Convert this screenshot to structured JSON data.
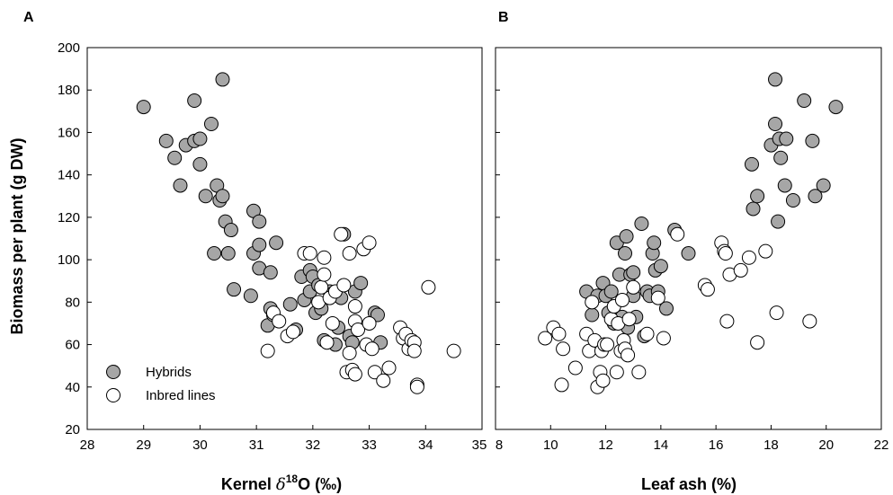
{
  "figure": {
    "ylabel": "Biomass per plant (g DW)"
  },
  "legend": {
    "hybrids_label": "Hybrids",
    "inbred_label": "Inbred lines"
  },
  "colors": {
    "hybrids_fill": "#a6a6a6",
    "inbred_fill": "#ffffff",
    "marker_stroke": "#000000"
  },
  "chart_data": [
    {
      "type": "scatter",
      "panel_label": "A",
      "xlabel_parts": [
        "Kernel ",
        "δ",
        "18",
        "O (‰)"
      ],
      "ylabel": "Biomass per plant (g DW)",
      "xlim": [
        28,
        35
      ],
      "ylim": [
        20,
        200
      ],
      "xticks": [
        "28",
        "29",
        "30",
        "31",
        "32",
        "33",
        "34",
        "35"
      ],
      "yticks": [
        "20",
        "40",
        "60",
        "80",
        "100",
        "120",
        "140",
        "160",
        "180",
        "200"
      ],
      "legend_position": "bottom-left",
      "series": [
        {
          "name": "Hybrids",
          "points": [
            [
              29.0,
              172
            ],
            [
              29.4,
              156
            ],
            [
              29.55,
              148
            ],
            [
              29.65,
              135
            ],
            [
              29.75,
              154
            ],
            [
              29.9,
              175
            ],
            [
              29.9,
              156
            ],
            [
              30.0,
              157
            ],
            [
              30.0,
              145
            ],
            [
              30.1,
              130
            ],
            [
              30.2,
              164
            ],
            [
              30.25,
              103
            ],
            [
              30.3,
              135
            ],
            [
              30.35,
              128
            ],
            [
              30.4,
              130
            ],
            [
              30.4,
              185
            ],
            [
              30.45,
              118
            ],
            [
              30.5,
              103
            ],
            [
              30.55,
              114
            ],
            [
              30.6,
              86
            ],
            [
              30.9,
              83
            ],
            [
              30.95,
              123
            ],
            [
              30.95,
              103
            ],
            [
              31.05,
              118
            ],
            [
              31.05,
              96
            ],
            [
              31.05,
              107
            ],
            [
              31.2,
              69
            ],
            [
              31.25,
              77
            ],
            [
              31.25,
              94
            ],
            [
              31.3,
              74
            ],
            [
              31.35,
              108
            ],
            [
              31.6,
              79
            ],
            [
              31.7,
              67
            ],
            [
              31.8,
              92
            ],
            [
              31.85,
              81
            ],
            [
              31.95,
              95
            ],
            [
              31.95,
              85
            ],
            [
              32.0,
              92
            ],
            [
              32.05,
              75
            ],
            [
              32.1,
              88
            ],
            [
              32.15,
              77
            ],
            [
              32.2,
              62
            ],
            [
              32.3,
              85
            ],
            [
              32.35,
              84
            ],
            [
              32.4,
              60
            ],
            [
              32.45,
              68
            ],
            [
              32.5,
              82
            ],
            [
              32.55,
              112
            ],
            [
              32.65,
              64
            ],
            [
              32.7,
              61
            ],
            [
              32.75,
              85
            ],
            [
              32.85,
              89
            ],
            [
              33.1,
              75
            ],
            [
              33.15,
              74
            ],
            [
              33.2,
              61
            ]
          ]
        },
        {
          "name": "Inbred lines",
          "points": [
            [
              31.2,
              57
            ],
            [
              31.3,
              75
            ],
            [
              31.4,
              71
            ],
            [
              31.55,
              64
            ],
            [
              31.65,
              66
            ],
            [
              31.85,
              103
            ],
            [
              31.95,
              103
            ],
            [
              32.1,
              80
            ],
            [
              32.15,
              87
            ],
            [
              32.2,
              101
            ],
            [
              32.2,
              93
            ],
            [
              32.25,
              61
            ],
            [
              32.3,
              82
            ],
            [
              32.35,
              70
            ],
            [
              32.4,
              85
            ],
            [
              32.5,
              112
            ],
            [
              32.55,
              88
            ],
            [
              32.6,
              47
            ],
            [
              32.65,
              103
            ],
            [
              32.65,
              56
            ],
            [
              32.7,
              48
            ],
            [
              32.75,
              46
            ],
            [
              32.75,
              71
            ],
            [
              32.75,
              78
            ],
            [
              32.8,
              67
            ],
            [
              32.9,
              105
            ],
            [
              32.95,
              60
            ],
            [
              33.0,
              108
            ],
            [
              33.0,
              70
            ],
            [
              33.05,
              58
            ],
            [
              33.1,
              47
            ],
            [
              33.25,
              43
            ],
            [
              33.35,
              49
            ],
            [
              33.55,
              68
            ],
            [
              33.6,
              63
            ],
            [
              33.65,
              65
            ],
            [
              33.7,
              58
            ],
            [
              33.75,
              62
            ],
            [
              33.8,
              61
            ],
            [
              33.8,
              57
            ],
            [
              33.85,
              41
            ],
            [
              33.85,
              40
            ],
            [
              34.05,
              87
            ],
            [
              34.5,
              57
            ]
          ]
        }
      ]
    },
    {
      "type": "scatter",
      "panel_label": "B",
      "xlabel_parts": [
        "Leaf ash (%)"
      ],
      "ylabel": "",
      "xlim": [
        8,
        22
      ],
      "ylim": [
        20,
        200
      ],
      "xticks": [
        "8",
        "10",
        "12",
        "14",
        "16",
        "18",
        "20",
        "22"
      ],
      "yticks": [],
      "series": [
        {
          "name": "Hybrids",
          "points": [
            [
              11.3,
              85
            ],
            [
              11.5,
              74
            ],
            [
              11.7,
              83
            ],
            [
              11.9,
              89
            ],
            [
              12.0,
              83
            ],
            [
              12.1,
              75
            ],
            [
              12.2,
              85
            ],
            [
              12.3,
              70
            ],
            [
              12.4,
              108
            ],
            [
              12.5,
              93
            ],
            [
              12.6,
              73
            ],
            [
              12.7,
              103
            ],
            [
              12.75,
              111
            ],
            [
              12.8,
              68
            ],
            [
              12.9,
              93
            ],
            [
              13.0,
              83
            ],
            [
              13.0,
              94
            ],
            [
              13.1,
              73
            ],
            [
              13.3,
              117
            ],
            [
              13.4,
              64
            ],
            [
              13.5,
              85
            ],
            [
              13.6,
              83
            ],
            [
              13.7,
              103
            ],
            [
              13.75,
              108
            ],
            [
              13.8,
              95
            ],
            [
              13.9,
              85
            ],
            [
              14.0,
              97
            ],
            [
              14.2,
              77
            ],
            [
              14.5,
              114
            ],
            [
              15.0,
              103
            ],
            [
              17.3,
              145
            ],
            [
              17.35,
              124
            ],
            [
              17.5,
              130
            ],
            [
              18.0,
              154
            ],
            [
              18.15,
              185
            ],
            [
              18.15,
              164
            ],
            [
              18.25,
              118
            ],
            [
              18.3,
              157
            ],
            [
              18.35,
              148
            ],
            [
              18.5,
              135
            ],
            [
              18.55,
              157
            ],
            [
              18.8,
              128
            ],
            [
              19.2,
              175
            ],
            [
              19.5,
              156
            ],
            [
              19.6,
              130
            ],
            [
              19.9,
              135
            ],
            [
              20.35,
              172
            ]
          ]
        },
        {
          "name": "Inbred lines",
          "points": [
            [
              9.8,
              63
            ],
            [
              10.1,
              68
            ],
            [
              10.3,
              65
            ],
            [
              10.4,
              41
            ],
            [
              10.45,
              58
            ],
            [
              10.9,
              49
            ],
            [
              11.3,
              65
            ],
            [
              11.4,
              57
            ],
            [
              11.5,
              80
            ],
            [
              11.6,
              62
            ],
            [
              11.7,
              40
            ],
            [
              11.8,
              47
            ],
            [
              11.85,
              57
            ],
            [
              11.9,
              43
            ],
            [
              11.95,
              60
            ],
            [
              12.05,
              60
            ],
            [
              12.2,
              72
            ],
            [
              12.3,
              78
            ],
            [
              12.4,
              47
            ],
            [
              12.45,
              70
            ],
            [
              12.55,
              57
            ],
            [
              12.6,
              81
            ],
            [
              12.65,
              62
            ],
            [
              12.7,
              58
            ],
            [
              12.8,
              55
            ],
            [
              12.85,
              72
            ],
            [
              13.0,
              87
            ],
            [
              13.2,
              47
            ],
            [
              13.5,
              65
            ],
            [
              13.9,
              82
            ],
            [
              14.1,
              63
            ],
            [
              14.6,
              112
            ],
            [
              15.6,
              88
            ],
            [
              15.7,
              86
            ],
            [
              16.2,
              108
            ],
            [
              16.3,
              104
            ],
            [
              16.35,
              103
            ],
            [
              16.4,
              71
            ],
            [
              16.5,
              93
            ],
            [
              16.9,
              95
            ],
            [
              17.2,
              101
            ],
            [
              17.5,
              61
            ],
            [
              17.8,
              104
            ],
            [
              18.2,
              75
            ],
            [
              19.4,
              71
            ]
          ]
        }
      ]
    }
  ]
}
